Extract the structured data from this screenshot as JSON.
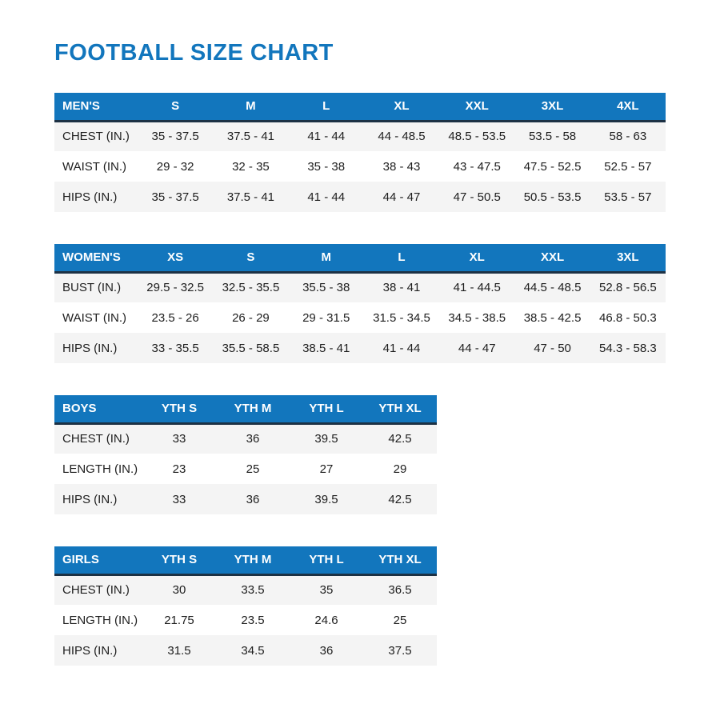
{
  "page": {
    "title": "FOOTBALL SIZE CHART"
  },
  "colors": {
    "accent_blue": "#1276bd",
    "header_border_dark": "#1c3144",
    "row_alt_gray": "#f4f4f4",
    "text_dark": "#1e1e1e"
  },
  "tables": [
    {
      "id": "mens",
      "size": "large",
      "header": [
        "MEN'S",
        "S",
        "M",
        "L",
        "XL",
        "XXL",
        "3XL",
        "4XL"
      ],
      "rows": [
        [
          "CHEST (IN.)",
          "35 - 37.5",
          "37.5 - 41",
          "41 - 44",
          "44 - 48.5",
          "48.5 - 53.5",
          "53.5 - 58",
          "58 - 63"
        ],
        [
          "WAIST (IN.)",
          "29 - 32",
          "32 - 35",
          "35 - 38",
          "38 - 43",
          "43 - 47.5",
          "47.5 - 52.5",
          "52.5 - 57"
        ],
        [
          "HIPS (IN.)",
          "35 - 37.5",
          "37.5 - 41",
          "41 - 44",
          "44 - 47",
          "47 - 50.5",
          "50.5 - 53.5",
          "53.5 - 57"
        ]
      ]
    },
    {
      "id": "womens",
      "size": "large",
      "header": [
        "WOMEN'S",
        "XS",
        "S",
        "M",
        "L",
        "XL",
        "XXL",
        "3XL"
      ],
      "rows": [
        [
          "BUST (IN.)",
          "29.5 - 32.5",
          "32.5 - 35.5",
          "35.5 - 38",
          "38 - 41",
          "41 - 44.5",
          "44.5 - 48.5",
          "52.8 - 56.5"
        ],
        [
          "WAIST (IN.)",
          "23.5 - 26",
          "26 - 29",
          "29 - 31.5",
          "31.5 - 34.5",
          "34.5 - 38.5",
          "38.5 - 42.5",
          "46.8 - 50.3"
        ],
        [
          "HIPS (IN.)",
          "33 - 35.5",
          "35.5 - 58.5",
          "38.5 - 41",
          "41 - 44",
          "44 - 47",
          "47 - 50",
          "54.3 - 58.3"
        ]
      ]
    },
    {
      "id": "boys",
      "size": "small",
      "header": [
        "BOYS",
        "YTH S",
        "YTH M",
        "YTH L",
        "YTH XL"
      ],
      "rows": [
        [
          "CHEST (IN.)",
          "33",
          "36",
          "39.5",
          "42.5"
        ],
        [
          "LENGTH (IN.)",
          "23",
          "25",
          "27",
          "29"
        ],
        [
          "HIPS (IN.)",
          "33",
          "36",
          "39.5",
          "42.5"
        ]
      ]
    },
    {
      "id": "girls",
      "size": "small",
      "header": [
        "GIRLS",
        "YTH S",
        "YTH M",
        "YTH L",
        "YTH XL"
      ],
      "rows": [
        [
          "CHEST (IN.)",
          "30",
          "33.5",
          "35",
          "36.5"
        ],
        [
          "LENGTH (IN.)",
          "21.75",
          "23.5",
          "24.6",
          "25"
        ],
        [
          "HIPS (IN.)",
          "31.5",
          "34.5",
          "36",
          "37.5"
        ]
      ]
    }
  ]
}
